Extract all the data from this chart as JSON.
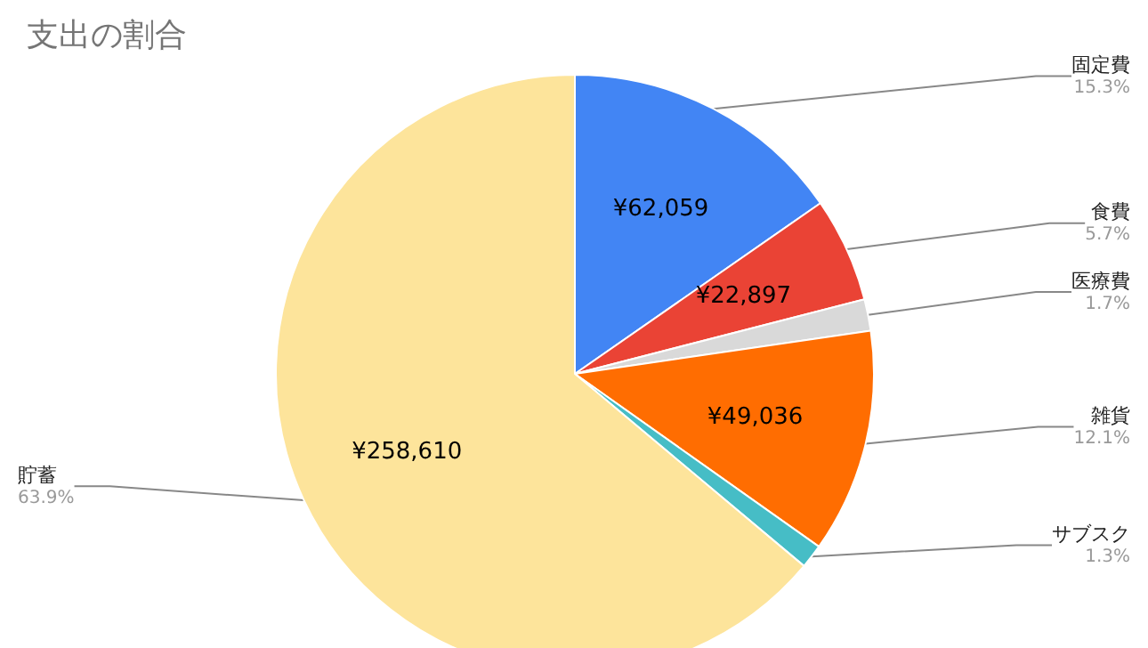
{
  "chart_data": {
    "type": "pie",
    "title": "支出の割合",
    "categories": [
      "固定費",
      "食費",
      "医療費",
      "雑貨",
      "サブスク",
      "貯蓄"
    ],
    "values": [
      62059,
      22897,
      6880,
      49036,
      5260,
      258610
    ],
    "colors": [
      "#4285f4",
      "#ea4335",
      "#d9d9d9",
      "#ff6d01",
      "#46bdc6",
      "#fde49b"
    ],
    "value_labels": [
      "¥62,059",
      "¥22,897",
      null,
      "¥49,036",
      null,
      "¥258,610"
    ],
    "annotations": [
      "15.3%",
      "5.7%",
      "1.7%",
      "12.1%",
      "1.3%",
      "63.9%"
    ],
    "legend": false
  }
}
